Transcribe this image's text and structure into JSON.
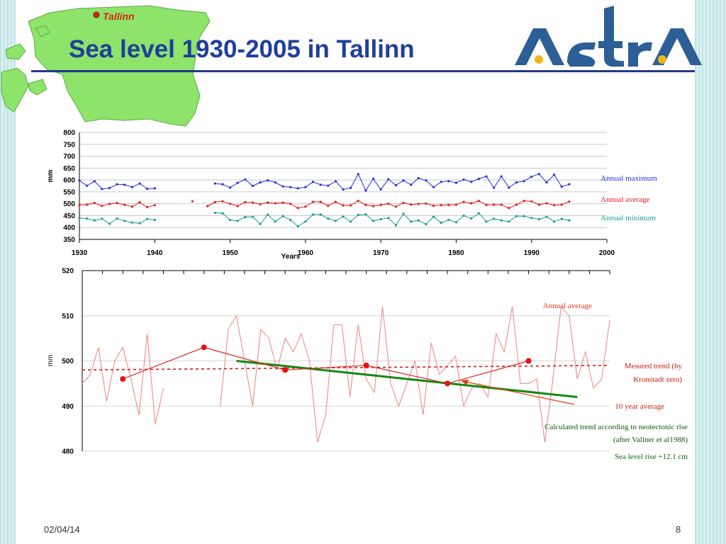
{
  "slide": {
    "title": "Sea level 1930-2005 in Tallinn",
    "map_label": "Tallinn",
    "logo_text": "AstrA",
    "date": "02/04/14",
    "page_number": "8"
  },
  "colors": {
    "max": "#1f2fd6",
    "avg": "#e31b1b",
    "min": "#1a9a9a",
    "trend": "#e33a10",
    "neo": "#118a11",
    "title": "#1f3f9a"
  },
  "chart_data": [
    {
      "type": "line",
      "ylabel": "mm",
      "xlabel": "Years",
      "xlim": [
        1930,
        2000
      ],
      "ylim": [
        350,
        800
      ],
      "x_ticks": [
        "1930",
        "1940",
        "1950",
        "1960",
        "1970",
        "1980",
        "1990",
        "2000"
      ],
      "y_ticks": [
        "800",
        "750",
        "700",
        "650",
        "600",
        "550",
        "500",
        "450",
        "400",
        "350"
      ],
      "grid": true,
      "legend_labels": [
        "Annual maximum",
        "Annual average",
        "Annual minimum"
      ],
      "x": [
        1930,
        1931,
        1932,
        1933,
        1934,
        1935,
        1936,
        1937,
        1938,
        1939,
        1940,
        1941,
        1942,
        1943,
        1944,
        1945,
        1946,
        1947,
        1948,
        1949,
        1950,
        1951,
        1952,
        1953,
        1954,
        1955,
        1956,
        1957,
        1958,
        1959,
        1960,
        1961,
        1962,
        1963,
        1964,
        1965,
        1966,
        1967,
        1968,
        1969,
        1970,
        1971,
        1972,
        1973,
        1974,
        1975,
        1976,
        1977,
        1978,
        1979,
        1980,
        1981,
        1982,
        1983,
        1984,
        1985,
        1986,
        1987,
        1988,
        1989,
        1990,
        1991,
        1992,
        1993,
        1994,
        1995
      ],
      "series": [
        {
          "name": "Annual maximum",
          "values": [
            598,
            576,
            595,
            562,
            566,
            582,
            580,
            570,
            585,
            563,
            565,
            null,
            null,
            null,
            null,
            null,
            null,
            null,
            585,
            582,
            568,
            588,
            602,
            575,
            590,
            598,
            590,
            573,
            570,
            565,
            570,
            592,
            580,
            576,
            595,
            560,
            567,
            625,
            556,
            605,
            560,
            603,
            578,
            598,
            580,
            608,
            598,
            570,
            592,
            595,
            588,
            602,
            592,
            605,
            615,
            567,
            615,
            568,
            590,
            595,
            614,
            625,
            590,
            622,
            572,
            582
          ]
        },
        {
          "name": "Annual average",
          "values": [
            495,
            496,
            503,
            491,
            500,
            503,
            496,
            488,
            506,
            486,
            494,
            null,
            null,
            null,
            null,
            510,
            null,
            490,
            507,
            510,
            500,
            490,
            507,
            505,
            498,
            505,
            502,
            505,
            500,
            482,
            488,
            508,
            508,
            492,
            508,
            493,
            493,
            512,
            495,
            490,
            495,
            500,
            488,
            504,
            497,
            499,
            501,
            492,
            494,
            495,
            496,
            508,
            502,
            512,
            495,
            496,
            496,
            482,
            496,
            512,
            510,
            496,
            502,
            494,
            496,
            509
          ]
        },
        {
          "name": "Annual minimum",
          "values": [
            440,
            438,
            430,
            437,
            416,
            438,
            428,
            421,
            418,
            436,
            432,
            null,
            null,
            null,
            null,
            null,
            null,
            null,
            462,
            460,
            432,
            428,
            444,
            445,
            415,
            454,
            425,
            448,
            432,
            405,
            425,
            455,
            455,
            438,
            428,
            446,
            425,
            453,
            455,
            428,
            435,
            440,
            410,
            458,
            425,
            430,
            414,
            445,
            420,
            432,
            422,
            450,
            438,
            460,
            425,
            437,
            430,
            425,
            448,
            448,
            440,
            435,
            445,
            425,
            436,
            430
          ]
        }
      ]
    },
    {
      "type": "line",
      "ylabel": "mm",
      "xlim": [
        1930,
        1995
      ],
      "ylim": [
        480,
        520
      ],
      "y_ticks": [
        "520",
        "510",
        "500",
        "490",
        "480"
      ],
      "grid": true,
      "annotations": [
        "Annual average",
        "Mesured trend (by",
        "Kronstadt zero)",
        "10 year average",
        "Calculated trend according to neotectonic rise",
        "(after Vallner et al1988)",
        "Sea level rise +12.1 cm"
      ],
      "series": [
        {
          "name": "Annual average",
          "x": [
            1930,
            1931,
            1932,
            1933,
            1934,
            1935,
            1936,
            1937,
            1938,
            1939,
            1940,
            1947,
            1948,
            1949,
            1950,
            1951,
            1952,
            1953,
            1954,
            1955,
            1956,
            1957,
            1958,
            1959,
            1960,
            1961,
            1962,
            1963,
            1964,
            1965,
            1966,
            1967,
            1968,
            1969,
            1970,
            1971,
            1972,
            1973,
            1974,
            1975,
            1976,
            1977,
            1978,
            1979,
            1980,
            1981,
            1982,
            1983,
            1984,
            1985,
            1986,
            1987,
            1988,
            1989,
            1990,
            1991,
            1992,
            1993,
            1994,
            1995
          ],
          "values": [
            495,
            497,
            503,
            491,
            500,
            503,
            496,
            488,
            506,
            486,
            494,
            490,
            507,
            510,
            500,
            490,
            507,
            505,
            498,
            505,
            502,
            506,
            500,
            482,
            488,
            508,
            508,
            492,
            508,
            496,
            493,
            512,
            495,
            490,
            495,
            500,
            488,
            504,
            497,
            499,
            501,
            490,
            494,
            495,
            492,
            506,
            502,
            512,
            495,
            495,
            496,
            482,
            496,
            512,
            510,
            496,
            502,
            494,
            496,
            509
          ]
        },
        {
          "name": "10 year average",
          "x": [
            1935,
            1945,
            1955,
            1965,
            1975,
            1985
          ],
          "values": [
            496,
            503,
            498,
            499,
            495,
            500
          ]
        },
        {
          "name": "Mesured trend (by Kronstadt zero)",
          "x": [
            1930,
            1995
          ],
          "values": [
            498,
            499
          ]
        },
        {
          "name": "Calculated trend according to neotectonic rise (after Vallner et al1988)",
          "x": [
            1949,
            1991
          ],
          "values": [
            500,
            492
          ]
        }
      ]
    }
  ]
}
